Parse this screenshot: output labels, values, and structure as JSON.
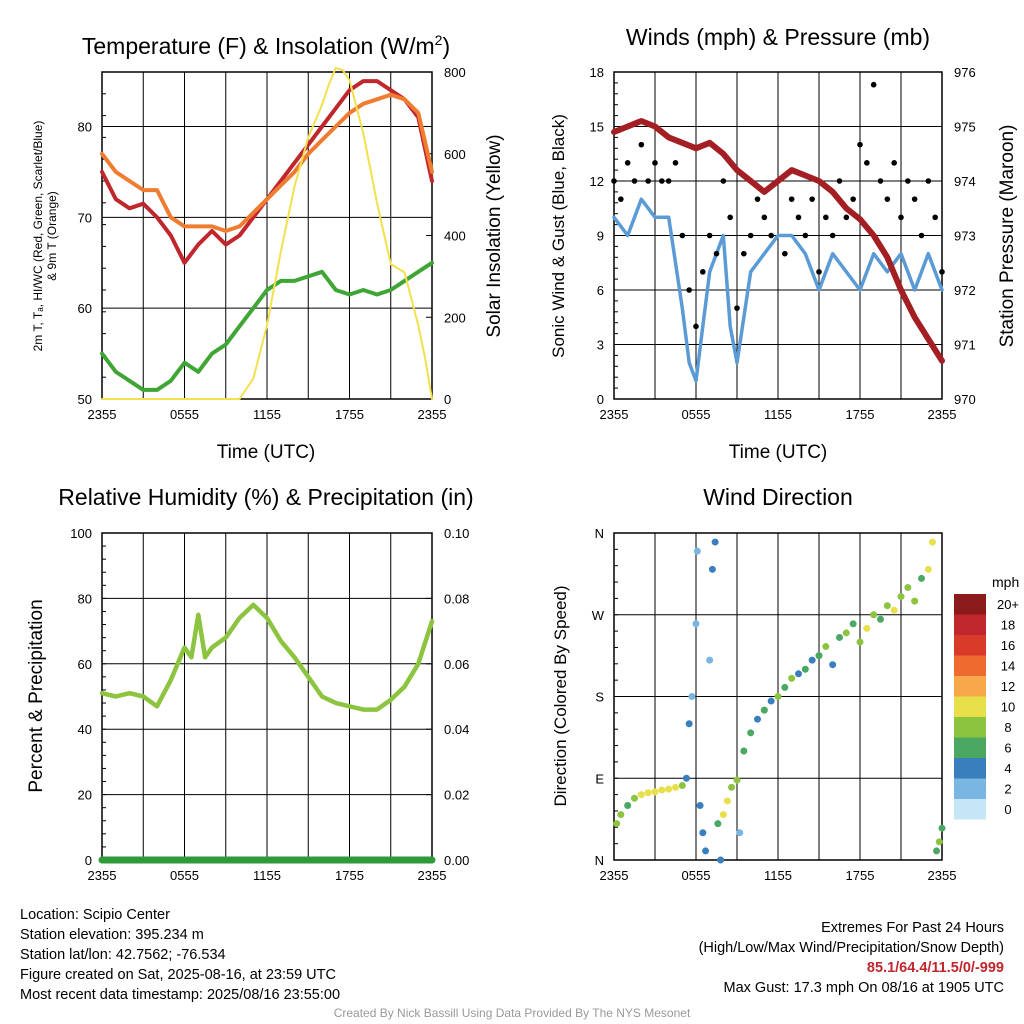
{
  "panels": {
    "temperature": {
      "title_main": "Temperature (F) & Insolation (W/m",
      "title_sup": "2",
      "title_end": ")",
      "ylabel_left_line1": "2m T, Tₐ, HI/WC (Red, Green, Scarlet/Blue)",
      "ylabel_left_line2": "& 9m T (Orange)",
      "ylabel_right": "Solar Insolation (Yellow)",
      "xlabel": "Time (UTC)"
    },
    "winds": {
      "title": "Winds (mph) & Pressure (mb)",
      "ylabel_left": "Sonic Wind & Gust (Blue, Black)",
      "ylabel_right": "Station Pressure (Maroon)",
      "xlabel": "Time (UTC)"
    },
    "humidity": {
      "title": "Relative Humidity (%) & Precipitation (in)",
      "ylabel_left": "Percent & Precipitation"
    },
    "direction": {
      "title": "Wind Direction",
      "ylabel_left": "Direction (Colored By Speed)",
      "legend_title": "mph",
      "legend_labels": [
        "20+",
        "18",
        "16",
        "14",
        "12",
        "10",
        "8",
        "6",
        "4",
        "2",
        "0"
      ],
      "legend_colors": [
        "#8b1a1a",
        "#c0272d",
        "#d93b2b",
        "#ef6a2e",
        "#f7a84a",
        "#e8e04a",
        "#8cc43f",
        "#4aa862",
        "#3a7fbd",
        "#7ab6e2",
        "#c5e6f7"
      ]
    }
  },
  "info": {
    "location": "Location: Scipio Center",
    "elevation": "Station elevation: 395.234 m",
    "latlon": "Station lat/lon: 42.7562; -76.534",
    "created": "Figure created on Sat, 2025-08-16, at 23:59 UTC",
    "recent": "Most recent data timestamp: 2025/08/16 23:55:00",
    "extremes_title": "Extremes For Past 24 Hours",
    "extremes_sub": "(High/Low/Max Wind/Precipitation/Snow Depth)",
    "extremes_values": "85.1/64.4/11.5/0/-999",
    "max_gust": "Max Gust: 17.3 mph On 08/16 at 1905 UTC",
    "credit": "Created By Nick Bassill Using Data Provided By The NYS Mesonet"
  },
  "chart_data": [
    {
      "type": "line",
      "title": "Temperature (F) & Insolation (W/m2)",
      "xlabel": "Time (UTC)",
      "ylabel": "2m T, Td, HI/WC (Red, Green, Scarlet/Blue) & 9m T (Orange)",
      "y2label": "Solar Insolation (Yellow)",
      "xlim": [
        0,
        24
      ],
      "ylim": [
        50,
        86
      ],
      "y2lim": [
        0,
        800
      ],
      "xticks": [
        0,
        6,
        12,
        18,
        24
      ],
      "xtick_labels": [
        "2355",
        "0555",
        "1155",
        "1755",
        "2355"
      ],
      "yticks": [
        50,
        60,
        70,
        80
      ],
      "y2ticks": [
        0,
        200,
        400,
        600,
        800
      ],
      "series": [
        {
          "name": "2m T",
          "color": "#c0272d",
          "axis": "left",
          "x": [
            0,
            1,
            2,
            3,
            4,
            5,
            6,
            7,
            8,
            9,
            10,
            11,
            12,
            13,
            14,
            15,
            16,
            17,
            18,
            19,
            20,
            21,
            22,
            23,
            24
          ],
          "y": [
            75,
            72,
            71,
            71.5,
            70,
            68,
            65,
            67,
            68.5,
            67,
            68,
            70,
            72,
            74,
            76,
            78,
            80,
            82,
            84,
            85,
            85,
            84,
            83,
            81,
            74
          ]
        },
        {
          "name": "9m T",
          "color": "#ef7c30",
          "axis": "left",
          "x": [
            0,
            1,
            2,
            3,
            4,
            5,
            6,
            7,
            8,
            9,
            10,
            11,
            12,
            13,
            14,
            15,
            16,
            17,
            18,
            19,
            20,
            21,
            22,
            23,
            24
          ],
          "y": [
            77,
            75,
            74,
            73,
            73,
            70,
            69,
            69,
            69,
            68.5,
            69,
            70.5,
            72,
            73.5,
            75,
            77,
            78.5,
            80,
            81.5,
            82.5,
            83,
            83.5,
            83,
            81.5,
            75
          ]
        },
        {
          "name": "2m Td",
          "color": "#3fa535",
          "axis": "left",
          "x": [
            0,
            1,
            2,
            3,
            4,
            5,
            6,
            7,
            8,
            9,
            10,
            11,
            12,
            13,
            14,
            15,
            16,
            17,
            18,
            19,
            20,
            21,
            22,
            23,
            24
          ],
          "y": [
            55,
            53,
            52,
            51,
            51,
            52,
            54,
            53,
            55,
            56,
            58,
            60,
            62,
            63,
            63,
            63.5,
            64,
            62,
            61.5,
            62,
            61.5,
            62,
            63,
            64,
            65
          ]
        },
        {
          "name": "Solar Insolation",
          "color": "#f3e04d",
          "axis": "right",
          "x": [
            0,
            2,
            4,
            6,
            8,
            10,
            11,
            12,
            13,
            14,
            15,
            16,
            16.5,
            17,
            17.5,
            18,
            19,
            20,
            21,
            22,
            23,
            23.5,
            24
          ],
          "y": [
            0,
            0,
            0,
            0,
            0,
            0,
            50,
            180,
            360,
            520,
            640,
            720,
            770,
            810,
            805,
            780,
            650,
            480,
            330,
            310,
            180,
            100,
            0
          ]
        }
      ]
    },
    {
      "type": "line",
      "title": "Winds (mph) & Pressure (mb)",
      "xlabel": "Time (UTC)",
      "ylabel": "Sonic Wind & Gust (Blue, Black)",
      "y2label": "Station Pressure (Maroon)",
      "xlim": [
        0,
        24
      ],
      "ylim": [
        0,
        18
      ],
      "y2lim": [
        970,
        976
      ],
      "xticks": [
        0,
        6,
        12,
        18,
        24
      ],
      "xtick_labels": [
        "2355",
        "0555",
        "1155",
        "1755",
        "2355"
      ],
      "yticks": [
        0,
        3,
        6,
        9,
        12,
        15,
        18
      ],
      "y2ticks": [
        970,
        971,
        972,
        973,
        974,
        975,
        976
      ],
      "series": [
        {
          "name": "Sonic Wind",
          "color": "#5b9bd5",
          "axis": "left",
          "x": [
            0,
            1,
            2,
            3,
            4,
            5,
            5.5,
            6,
            6.5,
            7,
            8,
            8.5,
            9,
            10,
            11,
            12,
            13,
            14,
            15,
            16,
            17,
            18,
            19,
            20,
            21,
            22,
            23,
            24
          ],
          "y": [
            10,
            9,
            11,
            10,
            10,
            5,
            2,
            1,
            4,
            7,
            9,
            4,
            2,
            7,
            8,
            9,
            9,
            8,
            6,
            8,
            7,
            6,
            8,
            7,
            8,
            6,
            8,
            6
          ]
        },
        {
          "name": "Gust",
          "color": "#000000",
          "axis": "left",
          "style": "points",
          "x": [
            0,
            0.5,
            1,
            1.5,
            2,
            2.5,
            3,
            3.5,
            4,
            4.5,
            5,
            5.5,
            6,
            6.5,
            7,
            7.5,
            8,
            8.5,
            9,
            9.5,
            10,
            10.5,
            11,
            11.5,
            12,
            12.5,
            13,
            13.5,
            14,
            14.5,
            15,
            15.5,
            16,
            16.5,
            17,
            17.5,
            18,
            18.5,
            19,
            19.5,
            20,
            20.5,
            21,
            21.5,
            22,
            22.5,
            23,
            23.5,
            24
          ],
          "y": [
            12,
            11,
            13,
            12,
            14,
            12,
            13,
            12,
            12,
            13,
            9,
            6,
            4,
            7,
            9,
            8,
            12,
            10,
            5,
            8,
            9,
            11,
            10,
            9,
            12,
            8,
            11,
            10,
            9,
            11,
            7,
            10,
            9,
            12,
            10,
            11,
            14,
            13,
            17.3,
            12,
            11,
            13,
            10,
            12,
            11,
            9,
            12,
            10,
            7
          ]
        },
        {
          "name": "Station Pressure",
          "color": "#a31f24",
          "axis": "right",
          "x": [
            0,
            1,
            2,
            3,
            4,
            5,
            6,
            7,
            8,
            9,
            10,
            11,
            12,
            13,
            14,
            15,
            16,
            17,
            18,
            19,
            20,
            21,
            22,
            23,
            24
          ],
          "y": [
            974.9,
            975.0,
            975.1,
            975.0,
            974.8,
            974.7,
            974.6,
            974.7,
            974.5,
            974.2,
            974.0,
            973.8,
            974.0,
            974.2,
            974.1,
            974.0,
            973.8,
            973.5,
            973.3,
            973.0,
            972.6,
            972.0,
            971.5,
            971.1,
            970.7
          ]
        }
      ]
    },
    {
      "type": "line",
      "title": "Relative Humidity (%) & Precipitation (in)",
      "ylabel": "Percent & Precipitation",
      "xlim": [
        0,
        24
      ],
      "ylim": [
        0,
        100
      ],
      "y2lim": [
        0,
        0.1
      ],
      "xticks": [
        0,
        6,
        12,
        18,
        24
      ],
      "xtick_labels": [
        "2355",
        "0555",
        "1155",
        "1755",
        "2355"
      ],
      "yticks": [
        0,
        20,
        40,
        60,
        80,
        100
      ],
      "y2ticks": [
        0,
        0.02,
        0.04,
        0.06,
        0.08,
        0.1
      ],
      "y2tick_labels": [
        "0.00",
        "0.02",
        "0.04",
        "0.06",
        "0.08",
        "0.10"
      ],
      "series": [
        {
          "name": "Relative Humidity",
          "color": "#8cc43f",
          "axis": "left",
          "x": [
            0,
            1,
            2,
            3,
            4,
            5,
            6,
            6.5,
            7,
            7.5,
            8,
            9,
            10,
            11,
            12,
            13,
            14,
            15,
            16,
            17,
            18,
            19,
            20,
            21,
            22,
            23,
            24
          ],
          "y": [
            51,
            50,
            51,
            50,
            47,
            55,
            65,
            62,
            75,
            62,
            65,
            68,
            74,
            78,
            74,
            67,
            62,
            56,
            50,
            48,
            47,
            46,
            46,
            49,
            53,
            60,
            73
          ]
        },
        {
          "name": "Precipitation",
          "color": "#2e9a3a",
          "axis": "right",
          "x": [
            0,
            24
          ],
          "y": [
            0,
            0
          ]
        }
      ]
    },
    {
      "type": "scatter",
      "title": "Wind Direction",
      "ylabel": "Direction (Colored By Speed)",
      "xlim": [
        0,
        24
      ],
      "xticks": [
        0,
        6,
        12,
        18,
        24
      ],
      "xtick_labels": [
        "2355",
        "0555",
        "1155",
        "1755",
        "2355"
      ],
      "ylim_deg": [
        0,
        360
      ],
      "yticks_deg": [
        0,
        90,
        180,
        270,
        360
      ],
      "ytick_labels": [
        "N",
        "E",
        "S",
        "W",
        "N"
      ],
      "legend": {
        "title": "mph",
        "levels": [
          "20+",
          "18",
          "16",
          "14",
          "12",
          "10",
          "8",
          "6",
          "4",
          "2",
          "0"
        ]
      },
      "points": [
        {
          "x": 0.2,
          "y": 40,
          "s": 8
        },
        {
          "x": 0.5,
          "y": 50,
          "s": 7
        },
        {
          "x": 1.0,
          "y": 60,
          "s": 6
        },
        {
          "x": 1.5,
          "y": 68,
          "s": 8
        },
        {
          "x": 2.0,
          "y": 72,
          "s": 10
        },
        {
          "x": 2.5,
          "y": 74,
          "s": 9
        },
        {
          "x": 3.0,
          "y": 75,
          "s": 10
        },
        {
          "x": 3.5,
          "y": 77,
          "s": 9
        },
        {
          "x": 4.0,
          "y": 78,
          "s": 10
        },
        {
          "x": 4.5,
          "y": 80,
          "s": 9
        },
        {
          "x": 5.0,
          "y": 82,
          "s": 8
        },
        {
          "x": 5.3,
          "y": 90,
          "s": 4
        },
        {
          "x": 5.5,
          "y": 150,
          "s": 3
        },
        {
          "x": 5.7,
          "y": 180,
          "s": 2
        },
        {
          "x": 6.0,
          "y": 260,
          "s": 1
        },
        {
          "x": 6.1,
          "y": 340,
          "s": 2
        },
        {
          "x": 6.3,
          "y": 60,
          "s": 4
        },
        {
          "x": 6.5,
          "y": 30,
          "s": 3
        },
        {
          "x": 6.7,
          "y": 10,
          "s": 4
        },
        {
          "x": 7.0,
          "y": 220,
          "s": 2
        },
        {
          "x": 7.2,
          "y": 320,
          "s": 3
        },
        {
          "x": 7.4,
          "y": 350,
          "s": 4
        },
        {
          "x": 7.6,
          "y": 40,
          "s": 6
        },
        {
          "x": 7.8,
          "y": 0,
          "s": 4
        },
        {
          "x": 8.0,
          "y": 50,
          "s": 10
        },
        {
          "x": 8.3,
          "y": 65,
          "s": 9
        },
        {
          "x": 8.6,
          "y": 80,
          "s": 8
        },
        {
          "x": 9.0,
          "y": 88,
          "s": 7
        },
        {
          "x": 9.2,
          "y": 30,
          "s": 2
        },
        {
          "x": 9.5,
          "y": 120,
          "s": 6
        },
        {
          "x": 10.0,
          "y": 140,
          "s": 5
        },
        {
          "x": 10.5,
          "y": 155,
          "s": 4
        },
        {
          "x": 11.0,
          "y": 165,
          "s": 6
        },
        {
          "x": 11.5,
          "y": 175,
          "s": 4
        },
        {
          "x": 12.0,
          "y": 180,
          "s": 8
        },
        {
          "x": 12.5,
          "y": 190,
          "s": 5
        },
        {
          "x": 13.0,
          "y": 200,
          "s": 7
        },
        {
          "x": 13.5,
          "y": 205,
          "s": 4
        },
        {
          "x": 14.0,
          "y": 210,
          "s": 6
        },
        {
          "x": 14.5,
          "y": 220,
          "s": 4
        },
        {
          "x": 15.0,
          "y": 225,
          "s": 5
        },
        {
          "x": 15.5,
          "y": 235,
          "s": 7
        },
        {
          "x": 16.0,
          "y": 215,
          "s": 4
        },
        {
          "x": 16.5,
          "y": 245,
          "s": 6
        },
        {
          "x": 17.0,
          "y": 250,
          "s": 8
        },
        {
          "x": 17.5,
          "y": 260,
          "s": 5
        },
        {
          "x": 18.0,
          "y": 240,
          "s": 7
        },
        {
          "x": 18.5,
          "y": 255,
          "s": 10
        },
        {
          "x": 19.0,
          "y": 270,
          "s": 8
        },
        {
          "x": 19.5,
          "y": 265,
          "s": 6
        },
        {
          "x": 20.0,
          "y": 280,
          "s": 7
        },
        {
          "x": 20.5,
          "y": 275,
          "s": 10
        },
        {
          "x": 21.0,
          "y": 290,
          "s": 8
        },
        {
          "x": 21.5,
          "y": 300,
          "s": 7
        },
        {
          "x": 22.0,
          "y": 285,
          "s": 8
        },
        {
          "x": 22.5,
          "y": 310,
          "s": 6
        },
        {
          "x": 23.0,
          "y": 320,
          "s": 10
        },
        {
          "x": 23.3,
          "y": 350,
          "s": 10
        },
        {
          "x": 23.6,
          "y": 10,
          "s": 6
        },
        {
          "x": 23.8,
          "y": 20,
          "s": 7
        },
        {
          "x": 24.0,
          "y": 35,
          "s": 6
        }
      ]
    }
  ]
}
